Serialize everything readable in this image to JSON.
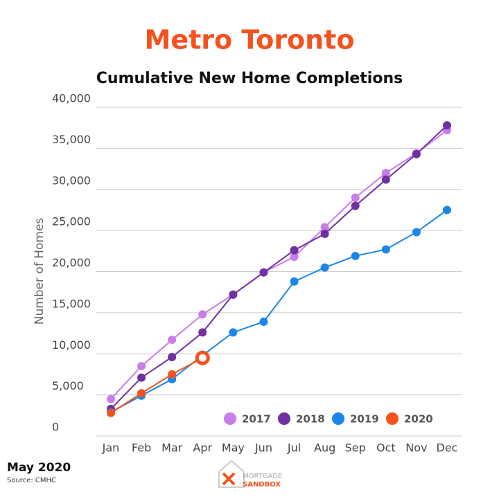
{
  "chart_data": {
    "type": "line",
    "title": "Metro Toronto",
    "subtitle": "Cumulative New Home Completions",
    "ylabel": "Number of Homes",
    "categories": [
      "Jan",
      "Feb",
      "Mar",
      "Apr",
      "May",
      "Jun",
      "Jul",
      "Aug",
      "Sep",
      "Oct",
      "Nov",
      "Dec"
    ],
    "series": [
      {
        "name": "2017",
        "color": "#c77dea",
        "values": [
          4500,
          8500,
          11700,
          14800,
          17200,
          19900,
          21800,
          25400,
          29000,
          32000,
          34400,
          37200
        ]
      },
      {
        "name": "2018",
        "color": "#7030a0",
        "values": [
          3300,
          7100,
          9600,
          12600,
          17200,
          19900,
          22600,
          24600,
          28000,
          31200,
          34300,
          37800
        ]
      },
      {
        "name": "2019",
        "color": "#1a86e8",
        "values": [
          2900,
          4900,
          6900,
          9800,
          12600,
          13900,
          18800,
          20500,
          21900,
          22700,
          24800,
          27500
        ]
      },
      {
        "name": "2020",
        "color": "#f4511e",
        "values": [
          2800,
          5200,
          7500,
          9500,
          null,
          null,
          null,
          null,
          null,
          null,
          null,
          null
        ]
      }
    ],
    "ylim": [
      0,
      40000
    ],
    "yticks": [
      0,
      {
        "value": 5000,
        "label": "5,000"
      },
      {
        "value": 10000,
        "label": "10,000"
      },
      {
        "value": 15000,
        "label": "15,000"
      },
      {
        "value": 20000,
        "label": "20,000"
      },
      {
        "value": 25000,
        "label": "25,000"
      },
      {
        "value": 30000,
        "label": "30,000"
      },
      {
        "value": 35000,
        "label": "35,000"
      },
      {
        "value": 40000,
        "label": "40,000"
      }
    ],
    "grid": true,
    "legend": "bottom-right",
    "title_color": "#f4511e"
  },
  "footer": {
    "date": "May 2020",
    "source": "Source: CMHC"
  },
  "logo": {
    "line1": "MORTGAGE",
    "line2": "SANDBOX"
  }
}
